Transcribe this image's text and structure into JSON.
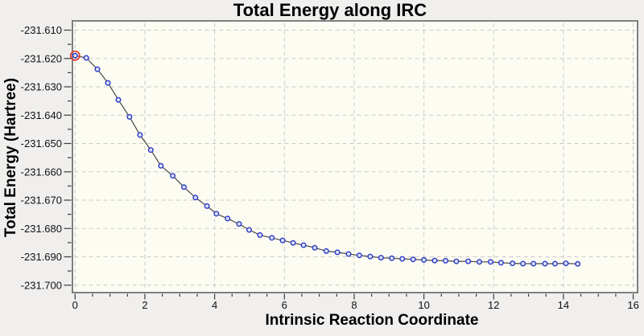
{
  "window": {
    "background": "#f0efee"
  },
  "chart_data": {
    "type": "line",
    "title": "Total Energy along IRC",
    "xlabel": "Intrinsic Reaction Coordinate",
    "ylabel": "Total Energy (Hartree)",
    "xlim": [
      0,
      16
    ],
    "ylim": [
      -231.702,
      -231.607
    ],
    "grid": true,
    "legend": false,
    "x_major_ticks": [
      0,
      2,
      4,
      6,
      8,
      10,
      12,
      14,
      16
    ],
    "x_minor_step": 0.5,
    "y_major_ticks": [
      -231.61,
      -231.62,
      -231.63,
      -231.64,
      -231.65,
      -231.66,
      -231.67,
      -231.68,
      -231.69,
      -231.7
    ],
    "y_minor_step": 0.005,
    "y_tick_decimals": 3,
    "series": [
      {
        "name": "total-energy",
        "marker": "open-circle",
        "points": [
          [
            0.0,
            -231.619
          ],
          [
            0.32,
            -231.6198
          ],
          [
            0.64,
            -231.6238
          ],
          [
            0.94,
            -231.6286
          ],
          [
            1.24,
            -231.6346
          ],
          [
            1.56,
            -231.6406
          ],
          [
            1.86,
            -231.647
          ],
          [
            2.17,
            -231.6523
          ],
          [
            2.46,
            -231.6579
          ],
          [
            2.8,
            -231.6614
          ],
          [
            3.12,
            -231.6654
          ],
          [
            3.45,
            -231.6691
          ],
          [
            3.78,
            -231.6721
          ],
          [
            4.05,
            -231.6748
          ],
          [
            4.37,
            -231.6765
          ],
          [
            4.7,
            -231.6784
          ],
          [
            4.99,
            -231.6805
          ],
          [
            5.3,
            -231.6823
          ],
          [
            5.64,
            -231.6833
          ],
          [
            5.95,
            -231.6842
          ],
          [
            6.25,
            -231.6851
          ],
          [
            6.55,
            -231.6859
          ],
          [
            6.87,
            -231.6868
          ],
          [
            7.2,
            -231.688
          ],
          [
            7.52,
            -231.6884
          ],
          [
            7.84,
            -231.689
          ],
          [
            8.15,
            -231.6895
          ],
          [
            8.46,
            -231.6899
          ],
          [
            8.77,
            -231.6903
          ],
          [
            9.08,
            -231.6905
          ],
          [
            9.38,
            -231.6907
          ],
          [
            9.69,
            -231.6909
          ],
          [
            10.0,
            -231.6911
          ],
          [
            10.31,
            -231.6913
          ],
          [
            10.62,
            -231.6914
          ],
          [
            10.93,
            -231.6916
          ],
          [
            11.27,
            -231.6916
          ],
          [
            11.59,
            -231.6918
          ],
          [
            11.91,
            -231.6918
          ],
          [
            12.21,
            -231.6921
          ],
          [
            12.54,
            -231.6923
          ],
          [
            12.84,
            -231.6924
          ],
          [
            13.14,
            -231.6924
          ],
          [
            13.47,
            -231.6924
          ],
          [
            13.76,
            -231.6924
          ],
          [
            14.07,
            -231.6923
          ],
          [
            14.41,
            -231.6925
          ]
        ]
      }
    ],
    "selected_point": {
      "x": 0.0,
      "y": -231.619
    },
    "colors": {
      "plot_background": "#fcfcf3",
      "border_dark": "#7e7e7e",
      "border_light": "#ffffff",
      "gridline": "#c9c9c9",
      "line": "#474747",
      "marker_stroke": "#2c39c5",
      "marker_fill": "#dce2f8",
      "selected_ring": "#e0352b",
      "tick": "#3a3a3a",
      "tick_label": "#111111"
    }
  }
}
